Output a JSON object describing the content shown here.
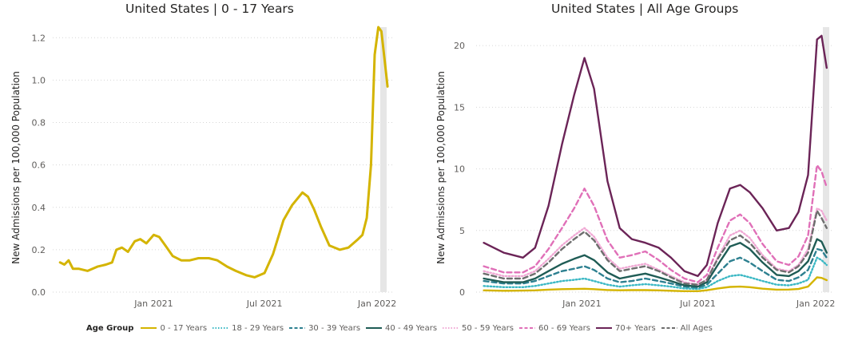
{
  "chart_data": [
    {
      "type": "line",
      "title": "United States | 0 - 17 Years",
      "ylabel": "New Admissions per 100,000 Population",
      "ylim": [
        0,
        1.25
      ],
      "yticks": [
        0.0,
        0.2,
        0.4,
        0.6,
        0.8,
        1.0,
        1.2
      ],
      "ytick_labels": [
        "0.0",
        "0.2",
        "0.4",
        "0.6",
        "0.8",
        "1.0",
        "1.2"
      ],
      "xticks": [
        "Jan 2021",
        "Jul 2021",
        "Jan 2022"
      ],
      "grid": "horizontal dotted",
      "series": [
        {
          "name": "0 - 17 Years",
          "color": "#d4b400",
          "dash": "solid",
          "x": [
            "2020-08-01",
            "2020-08-08",
            "2020-08-15",
            "2020-08-22",
            "2020-09-01",
            "2020-09-15",
            "2020-10-01",
            "2020-10-15",
            "2020-10-25",
            "2020-11-01",
            "2020-11-10",
            "2020-11-20",
            "2020-12-01",
            "2020-12-10",
            "2020-12-20",
            "2021-01-01",
            "2021-01-10",
            "2021-01-20",
            "2021-02-01",
            "2021-02-15",
            "2021-03-01",
            "2021-03-15",
            "2021-04-01",
            "2021-04-15",
            "2021-05-01",
            "2021-05-15",
            "2021-06-01",
            "2021-06-15",
            "2021-07-01",
            "2021-07-15",
            "2021-08-01",
            "2021-08-15",
            "2021-09-01",
            "2021-09-10",
            "2021-09-20",
            "2021-10-01",
            "2021-10-15",
            "2021-11-01",
            "2021-11-15",
            "2021-12-01",
            "2021-12-08",
            "2021-12-15",
            "2021-12-22",
            "2021-12-28",
            "2022-01-03",
            "2022-01-08",
            "2022-01-13",
            "2022-01-18"
          ],
          "y": [
            0.14,
            0.13,
            0.15,
            0.11,
            0.11,
            0.1,
            0.12,
            0.13,
            0.14,
            0.2,
            0.21,
            0.19,
            0.24,
            0.25,
            0.23,
            0.27,
            0.26,
            0.22,
            0.17,
            0.15,
            0.15,
            0.16,
            0.16,
            0.15,
            0.12,
            0.1,
            0.08,
            0.07,
            0.09,
            0.18,
            0.34,
            0.41,
            0.47,
            0.45,
            0.39,
            0.31,
            0.22,
            0.2,
            0.21,
            0.25,
            0.27,
            0.35,
            0.6,
            1.12,
            1.25,
            1.23,
            1.1,
            0.97
          ]
        }
      ]
    },
    {
      "type": "line",
      "title": "United States | All Age Groups",
      "ylabel": "New Admissions per 100,000 Population",
      "ylim": [
        0,
        21.5
      ],
      "yticks": [
        0,
        5,
        10,
        15,
        20
      ],
      "ytick_labels": [
        "0",
        "5",
        "10",
        "15",
        "20"
      ],
      "xticks": [
        "Jan 2021",
        "Jul 2021",
        "Jan 2022"
      ],
      "grid": "horizontal dotted",
      "x": [
        "2020-08-01",
        "2020-09-01",
        "2020-10-01",
        "2020-10-20",
        "2020-11-10",
        "2020-12-01",
        "2020-12-20",
        "2021-01-05",
        "2021-01-20",
        "2021-02-10",
        "2021-03-01",
        "2021-03-20",
        "2021-04-10",
        "2021-05-01",
        "2021-05-20",
        "2021-06-10",
        "2021-07-01",
        "2021-07-15",
        "2021-08-01",
        "2021-08-20",
        "2021-09-05",
        "2021-09-20",
        "2021-10-10",
        "2021-11-01",
        "2021-11-20",
        "2021-12-05",
        "2021-12-20",
        "2022-01-03",
        "2022-01-10",
        "2022-01-18"
      ],
      "series": [
        {
          "name": "0 - 17 Years",
          "color": "#d4b400",
          "dash": "solid",
          "y": [
            0.14,
            0.11,
            0.12,
            0.14,
            0.2,
            0.24,
            0.25,
            0.27,
            0.24,
            0.17,
            0.15,
            0.16,
            0.16,
            0.14,
            0.11,
            0.08,
            0.08,
            0.15,
            0.3,
            0.42,
            0.45,
            0.4,
            0.28,
            0.2,
            0.21,
            0.25,
            0.45,
            1.2,
            1.15,
            0.97
          ]
        },
        {
          "name": "18 - 29 Years",
          "color": "#3bb8c4",
          "dash": "dotted",
          "y": [
            0.5,
            0.4,
            0.4,
            0.5,
            0.7,
            0.9,
            1.0,
            1.1,
            0.9,
            0.6,
            0.45,
            0.55,
            0.65,
            0.55,
            0.45,
            0.3,
            0.25,
            0.4,
            0.9,
            1.3,
            1.4,
            1.2,
            0.9,
            0.6,
            0.55,
            0.7,
            1.0,
            2.8,
            2.6,
            2.2
          ]
        },
        {
          "name": "30 - 39 Years",
          "color": "#2d8090",
          "dash": "dashed",
          "y": [
            0.9,
            0.7,
            0.7,
            0.9,
            1.3,
            1.7,
            1.9,
            2.1,
            1.8,
            1.1,
            0.8,
            0.9,
            1.1,
            0.9,
            0.7,
            0.45,
            0.35,
            0.6,
            1.5,
            2.5,
            2.8,
            2.4,
            1.7,
            1.0,
            0.9,
            1.2,
            1.8,
            3.5,
            3.4,
            2.8
          ]
        },
        {
          "name": "40 - 49 Years",
          "color": "#1f5c55",
          "dash": "solid",
          "y": [
            1.1,
            0.8,
            0.8,
            1.1,
            1.7,
            2.3,
            2.7,
            3.0,
            2.6,
            1.6,
            1.1,
            1.3,
            1.5,
            1.2,
            0.9,
            0.55,
            0.45,
            0.8,
            2.2,
            3.7,
            4.0,
            3.5,
            2.4,
            1.4,
            1.3,
            1.7,
            2.5,
            4.3,
            4.1,
            3.2
          ]
        },
        {
          "name": "50 - 59 Years",
          "color": "#f0a8d4",
          "dash": "dotted",
          "y": [
            1.7,
            1.3,
            1.3,
            1.7,
            2.7,
            3.8,
            4.6,
            5.2,
            4.5,
            2.8,
            1.9,
            2.1,
            2.3,
            1.8,
            1.3,
            0.8,
            0.6,
            1.0,
            2.8,
            4.6,
            5.0,
            4.4,
            3.0,
            1.9,
            1.7,
            2.2,
            3.5,
            6.8,
            6.6,
            5.8
          ]
        },
        {
          "name": "60 - 69 Years",
          "color": "#e070b8",
          "dash": "dashed",
          "y": [
            2.1,
            1.6,
            1.6,
            2.1,
            3.5,
            5.2,
            6.8,
            8.4,
            7.0,
            4.2,
            2.8,
            3.0,
            3.3,
            2.6,
            1.8,
            1.1,
            0.8,
            1.4,
            3.6,
            5.8,
            6.3,
            5.6,
            3.9,
            2.5,
            2.2,
            2.9,
            4.6,
            10.3,
            9.8,
            8.5
          ]
        },
        {
          "name": "70+ Years",
          "color": "#6b2457",
          "dash": "solid",
          "y": [
            4.0,
            3.2,
            2.8,
            3.6,
            7.0,
            12.0,
            16.0,
            19.0,
            16.5,
            9.0,
            5.2,
            4.3,
            4.0,
            3.6,
            2.8,
            1.7,
            1.3,
            2.2,
            5.6,
            8.4,
            8.7,
            8.1,
            6.8,
            5.0,
            5.2,
            6.5,
            9.5,
            20.5,
            20.8,
            18.2
          ]
        },
        {
          "name": "All Ages",
          "color": "#6e6e6e",
          "dash": "dashed",
          "y": [
            1.5,
            1.1,
            1.1,
            1.5,
            2.4,
            3.5,
            4.3,
            4.9,
            4.2,
            2.6,
            1.7,
            1.9,
            2.1,
            1.7,
            1.2,
            0.7,
            0.6,
            1.0,
            2.7,
            4.2,
            4.6,
            4.0,
            2.8,
            1.8,
            1.6,
            2.1,
            3.2,
            6.6,
            6.0,
            5.2
          ]
        }
      ]
    }
  ],
  "legend": {
    "title": "Age Group",
    "items": [
      {
        "label": "0 - 17 Years",
        "color": "#d4b400",
        "dash": "solid"
      },
      {
        "label": "18 - 29 Years",
        "color": "#3bb8c4",
        "dash": "dotted"
      },
      {
        "label": "30 - 39 Years",
        "color": "#2d8090",
        "dash": "dashed"
      },
      {
        "label": "40 - 49 Years",
        "color": "#1f5c55",
        "dash": "solid"
      },
      {
        "label": "50 - 59 Years",
        "color": "#f0a8d4",
        "dash": "dotted"
      },
      {
        "label": "60 - 69 Years",
        "color": "#e070b8",
        "dash": "dashed"
      },
      {
        "label": "70+ Years",
        "color": "#6b2457",
        "dash": "solid"
      },
      {
        "label": "All Ages",
        "color": "#6e6e6e",
        "dash": "dashed"
      }
    ]
  }
}
